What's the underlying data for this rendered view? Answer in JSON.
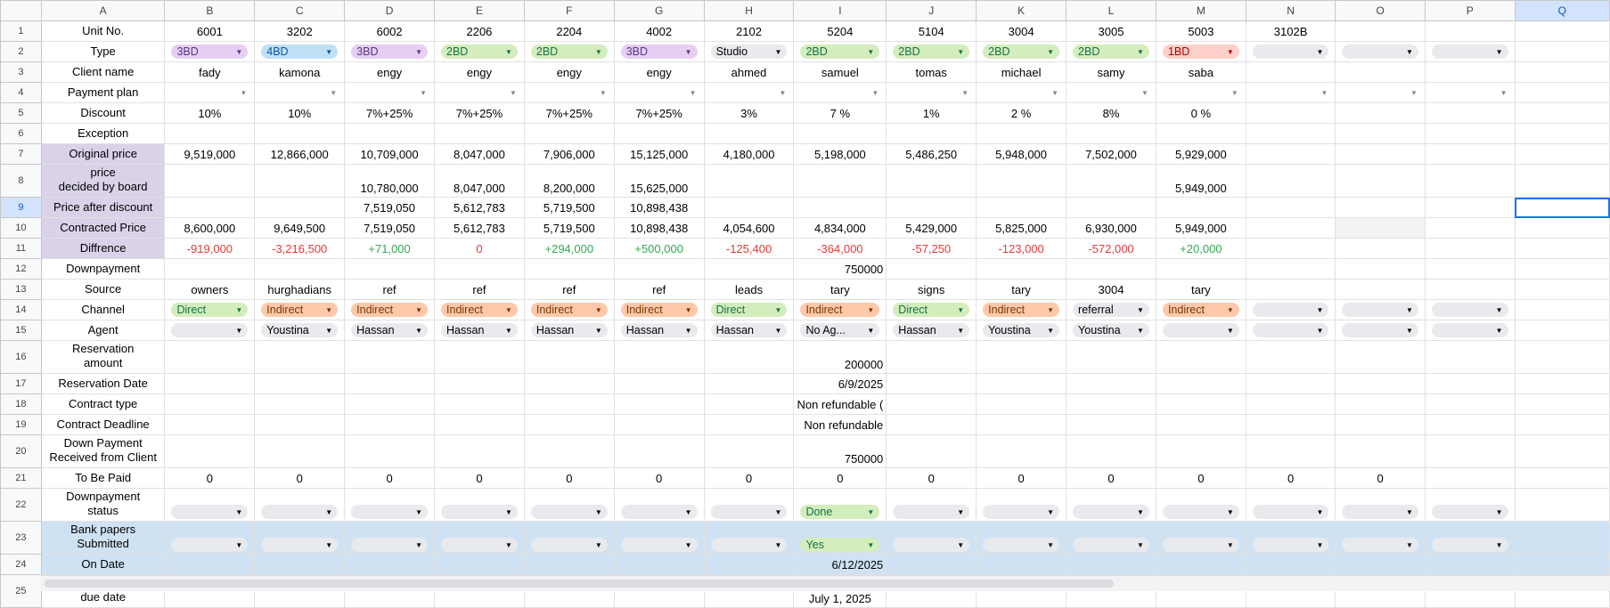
{
  "columns": [
    "A",
    "B",
    "C",
    "D",
    "E",
    "F",
    "G",
    "H",
    "I",
    "J",
    "K",
    "L",
    "M",
    "N",
    "O",
    "P",
    "Q"
  ],
  "selected_cell": "Q9",
  "chip_colors": {
    "purple": "#e6cff2",
    "blue": "#bfe1f6",
    "green": "#d4edbc",
    "red": "#ffcfc9",
    "gray": "#e8eaed",
    "orange": "#ffc8aa"
  },
  "rows": [
    {
      "n": "1",
      "label": "Unit No.",
      "cells": [
        "6001",
        "3202",
        "6002",
        "2206",
        "2204",
        "4002",
        "2102",
        "5204",
        "5104",
        "3004",
        "3005",
        "5003",
        "3102B",
        "",
        "",
        ""
      ]
    },
    {
      "n": "2",
      "label": "Type",
      "cells": [
        {
          "chip": "3BD",
          "c": "purple"
        },
        {
          "chip": "4BD",
          "c": "blue"
        },
        {
          "chip": "3BD",
          "c": "purple"
        },
        {
          "chip": "2BD",
          "c": "green"
        },
        {
          "chip": "2BD",
          "c": "green"
        },
        {
          "chip": "3BD",
          "c": "purple"
        },
        {
          "chip": "Studio",
          "c": "gray"
        },
        {
          "chip": "2BD",
          "c": "green"
        },
        {
          "chip": "2BD",
          "c": "green"
        },
        {
          "chip": "2BD",
          "c": "green"
        },
        {
          "chip": "2BD",
          "c": "green"
        },
        {
          "chip": "1BD",
          "c": "red"
        },
        {
          "chip": "",
          "c": "gray"
        },
        {
          "chip": "",
          "c": "gray"
        },
        {
          "chip": "",
          "c": "gray"
        },
        ""
      ]
    },
    {
      "n": "3",
      "label": "Client name",
      "cells": [
        "fady",
        "kamona",
        "engy",
        "engy",
        "engy",
        "engy",
        "ahmed",
        "samuel",
        "tomas",
        "michael",
        "samy",
        "saba",
        "",
        "",
        "",
        ""
      ]
    },
    {
      "n": "4",
      "label": "Payment plan",
      "cells": [
        {
          "arrow": 1
        },
        {
          "arrow": 1
        },
        {
          "arrow": 1
        },
        {
          "arrow": 1
        },
        {
          "arrow": 1
        },
        {
          "arrow": 1
        },
        {
          "arrow": 1
        },
        {
          "arrow": 1
        },
        {
          "arrow": 1
        },
        {
          "arrow": 1
        },
        {
          "arrow": 1
        },
        {
          "arrow": 1
        },
        {
          "arrow": 1
        },
        {
          "arrow": 1
        },
        {
          "arrow": 1
        },
        ""
      ]
    },
    {
      "n": "5",
      "label": "Discount",
      "cells": [
        "10%",
        "10%",
        "7%+25%",
        "7%+25%",
        "7%+25%",
        "7%+25%",
        "3%",
        "7 %",
        "1%",
        "2 %",
        "8%",
        "0 %",
        "",
        "",
        "",
        ""
      ]
    },
    {
      "n": "6",
      "label": "Exception",
      "cells": [
        "",
        "",
        "",
        "",
        "",
        "",
        "",
        "",
        "",
        "",
        "",
        "",
        "",
        "",
        "",
        ""
      ]
    },
    {
      "n": "7",
      "label": "Original price",
      "cells": [
        "9,519,000",
        "12,866,000",
        "10,709,000",
        "8,047,000",
        "7,906,000",
        "15,125,000",
        "4,180,000",
        "5,198,000",
        "5,486,250",
        "5,948,000",
        "7,502,000",
        "5,929,000",
        "",
        "",
        "",
        ""
      ]
    },
    {
      "n": "8",
      "label": "price\ndecided by board",
      "cells": [
        "",
        "",
        "10,780,000",
        "8,047,000",
        "8,200,000",
        "15,625,000",
        "",
        "",
        "",
        "",
        "",
        "5,949,000",
        "",
        "",
        "",
        ""
      ]
    },
    {
      "n": "9",
      "label": "Price after discount",
      "cells": [
        "",
        "",
        "7,519,050",
        "5,612,783",
        "5,719,500",
        "10,898,438",
        "",
        "",
        "",
        "",
        "",
        "",
        "",
        "",
        "",
        ""
      ]
    },
    {
      "n": "10",
      "label": "Contracted Price",
      "cells": [
        "8,600,000",
        "9,649,500",
        "7,519,050",
        "5,612,783",
        "5,719,500",
        "10,898,438",
        "4,054,600",
        "4,834,000",
        "5,429,000",
        "5,825,000",
        "6,930,000",
        "5,949,000",
        "",
        "",
        "",
        ""
      ]
    },
    {
      "n": "11",
      "label": "Diffrence",
      "cells": [
        "-919,000",
        "-3,216,500",
        "+71,000",
        "0",
        "+294,000",
        "+500,000",
        "-125,400",
        "-364,000",
        "-57,250",
        "-123,000",
        "-572,000",
        "+20,000",
        "",
        "",
        "",
        ""
      ]
    },
    {
      "n": "12",
      "label": "Downpayment",
      "cells": [
        "",
        "",
        "",
        "",
        "",
        "",
        "",
        "750000",
        "",
        "",
        "",
        "",
        "",
        "",
        "",
        ""
      ]
    },
    {
      "n": "13",
      "label": "Source",
      "cells": [
        "owners",
        "hurghadians",
        "ref",
        "ref",
        "ref",
        "ref",
        "leads",
        "tary",
        "signs",
        "tary",
        "3004",
        "tary",
        "",
        "",
        "",
        ""
      ]
    },
    {
      "n": "14",
      "label": "Channel",
      "cells": [
        {
          "chip": "Direct",
          "c": "green"
        },
        {
          "chip": "Indirect",
          "c": "orange"
        },
        {
          "chip": "Indirect",
          "c": "orange"
        },
        {
          "chip": "Indirect",
          "c": "orange"
        },
        {
          "chip": "Indirect",
          "c": "orange"
        },
        {
          "chip": "Indirect",
          "c": "orange"
        },
        {
          "chip": "Direct",
          "c": "green"
        },
        {
          "chip": "Indirect",
          "c": "orange"
        },
        {
          "chip": "Direct",
          "c": "green"
        },
        {
          "chip": "Indirect",
          "c": "orange"
        },
        {
          "chip": "referral",
          "c": "gray"
        },
        {
          "chip": "Indirect",
          "c": "orange"
        },
        {
          "chip": "",
          "c": "gray"
        },
        {
          "chip": "",
          "c": "gray"
        },
        {
          "chip": "",
          "c": "gray"
        },
        ""
      ]
    },
    {
      "n": "15",
      "label": "Agent",
      "cells": [
        {
          "chip": "",
          "c": "gray"
        },
        {
          "chip": "Youstina",
          "c": "gray"
        },
        {
          "chip": "Hassan",
          "c": "gray"
        },
        {
          "chip": "Hassan",
          "c": "gray"
        },
        {
          "chip": "Hassan",
          "c": "gray"
        },
        {
          "chip": "Hassan",
          "c": "gray"
        },
        {
          "chip": "Hassan",
          "c": "gray"
        },
        {
          "chip": "No Ag...",
          "c": "gray"
        },
        {
          "chip": "Hassan",
          "c": "gray"
        },
        {
          "chip": "Youstina",
          "c": "gray"
        },
        {
          "chip": "Youstina",
          "c": "gray"
        },
        {
          "chip": "",
          "c": "gray"
        },
        {
          "chip": "",
          "c": "gray"
        },
        {
          "chip": "",
          "c": "gray"
        },
        {
          "chip": "",
          "c": "gray"
        },
        ""
      ]
    },
    {
      "n": "16",
      "label": "Reservation\namount",
      "cells": [
        "",
        "",
        "",
        "",
        "",
        "",
        "",
        "200000",
        "",
        "",
        "",
        "",
        "",
        "",
        "",
        ""
      ]
    },
    {
      "n": "17",
      "label": "Reservation Date",
      "cells": [
        "",
        "",
        "",
        "",
        "",
        "",
        "",
        "6/9/2025",
        "",
        "",
        "",
        "",
        "",
        "",
        "",
        ""
      ]
    },
    {
      "n": "18",
      "label": "Contract type",
      "cells": [
        "",
        "",
        "",
        "",
        "",
        "",
        "",
        "Non refundable (",
        "",
        "",
        "",
        "",
        "",
        "",
        "",
        ""
      ]
    },
    {
      "n": "19",
      "label": "Contract Deadline",
      "cells": [
        "",
        "",
        "",
        "",
        "",
        "",
        "",
        "Non refundable",
        "",
        "",
        "",
        "",
        "",
        "",
        "",
        ""
      ]
    },
    {
      "n": "20",
      "label": "Down Payment\nReceived from Client",
      "cells": [
        "",
        "",
        "",
        "",
        "",
        "",
        "",
        "750000",
        "",
        "",
        "",
        "",
        "",
        "",
        "",
        ""
      ]
    },
    {
      "n": "21",
      "label": "To Be Paid",
      "cells": [
        "0",
        "0",
        "0",
        "0",
        "0",
        "0",
        "0",
        "0",
        "0",
        "0",
        "0",
        "0",
        "0",
        "0",
        "",
        ""
      ]
    },
    {
      "n": "22",
      "label": "Downpayment\nstatus",
      "cells": [
        {
          "chip": "",
          "c": "gray"
        },
        {
          "chip": "",
          "c": "gray"
        },
        {
          "chip": "",
          "c": "gray"
        },
        {
          "chip": "",
          "c": "gray"
        },
        {
          "chip": "",
          "c": "gray"
        },
        {
          "chip": "",
          "c": "gray"
        },
        {
          "chip": "",
          "c": "gray"
        },
        {
          "chip": "Done",
          "c": "green"
        },
        {
          "chip": "",
          "c": "gray"
        },
        {
          "chip": "",
          "c": "gray"
        },
        {
          "chip": "",
          "c": "gray"
        },
        {
          "chip": "",
          "c": "gray"
        },
        {
          "chip": "",
          "c": "gray"
        },
        {
          "chip": "",
          "c": "gray"
        },
        {
          "chip": "",
          "c": "gray"
        },
        ""
      ]
    },
    {
      "n": "23",
      "label": "Bank papers\nSubmitted",
      "cells": [
        {
          "chip": "",
          "c": "gray"
        },
        {
          "chip": "",
          "c": "gray"
        },
        {
          "chip": "",
          "c": "gray"
        },
        {
          "chip": "",
          "c": "gray"
        },
        {
          "chip": "",
          "c": "gray"
        },
        {
          "chip": "",
          "c": "gray"
        },
        {
          "chip": "",
          "c": "gray"
        },
        {
          "chip": "Yes",
          "c": "green"
        },
        {
          "chip": "",
          "c": "gray"
        },
        {
          "chip": "",
          "c": "gray"
        },
        {
          "chip": "",
          "c": "gray"
        },
        {
          "chip": "",
          "c": "gray"
        },
        {
          "chip": "",
          "c": "gray"
        },
        {
          "chip": "",
          "c": "gray"
        },
        {
          "chip": "",
          "c": "gray"
        },
        ""
      ]
    },
    {
      "n": "24",
      "label": "On Date",
      "cells": [
        "",
        "",
        "",
        "",
        "",
        "",
        "",
        "6/12/2025",
        "",
        "",
        "",
        "",
        "",
        "",
        "",
        ""
      ]
    },
    {
      "n": "25",
      "label": "commission\ndue date",
      "cells": [
        "",
        "",
        "",
        "",
        "",
        "",
        "",
        "July 1, 2025",
        "",
        "",
        "",
        "",
        "",
        "",
        "",
        ""
      ]
    }
  ]
}
